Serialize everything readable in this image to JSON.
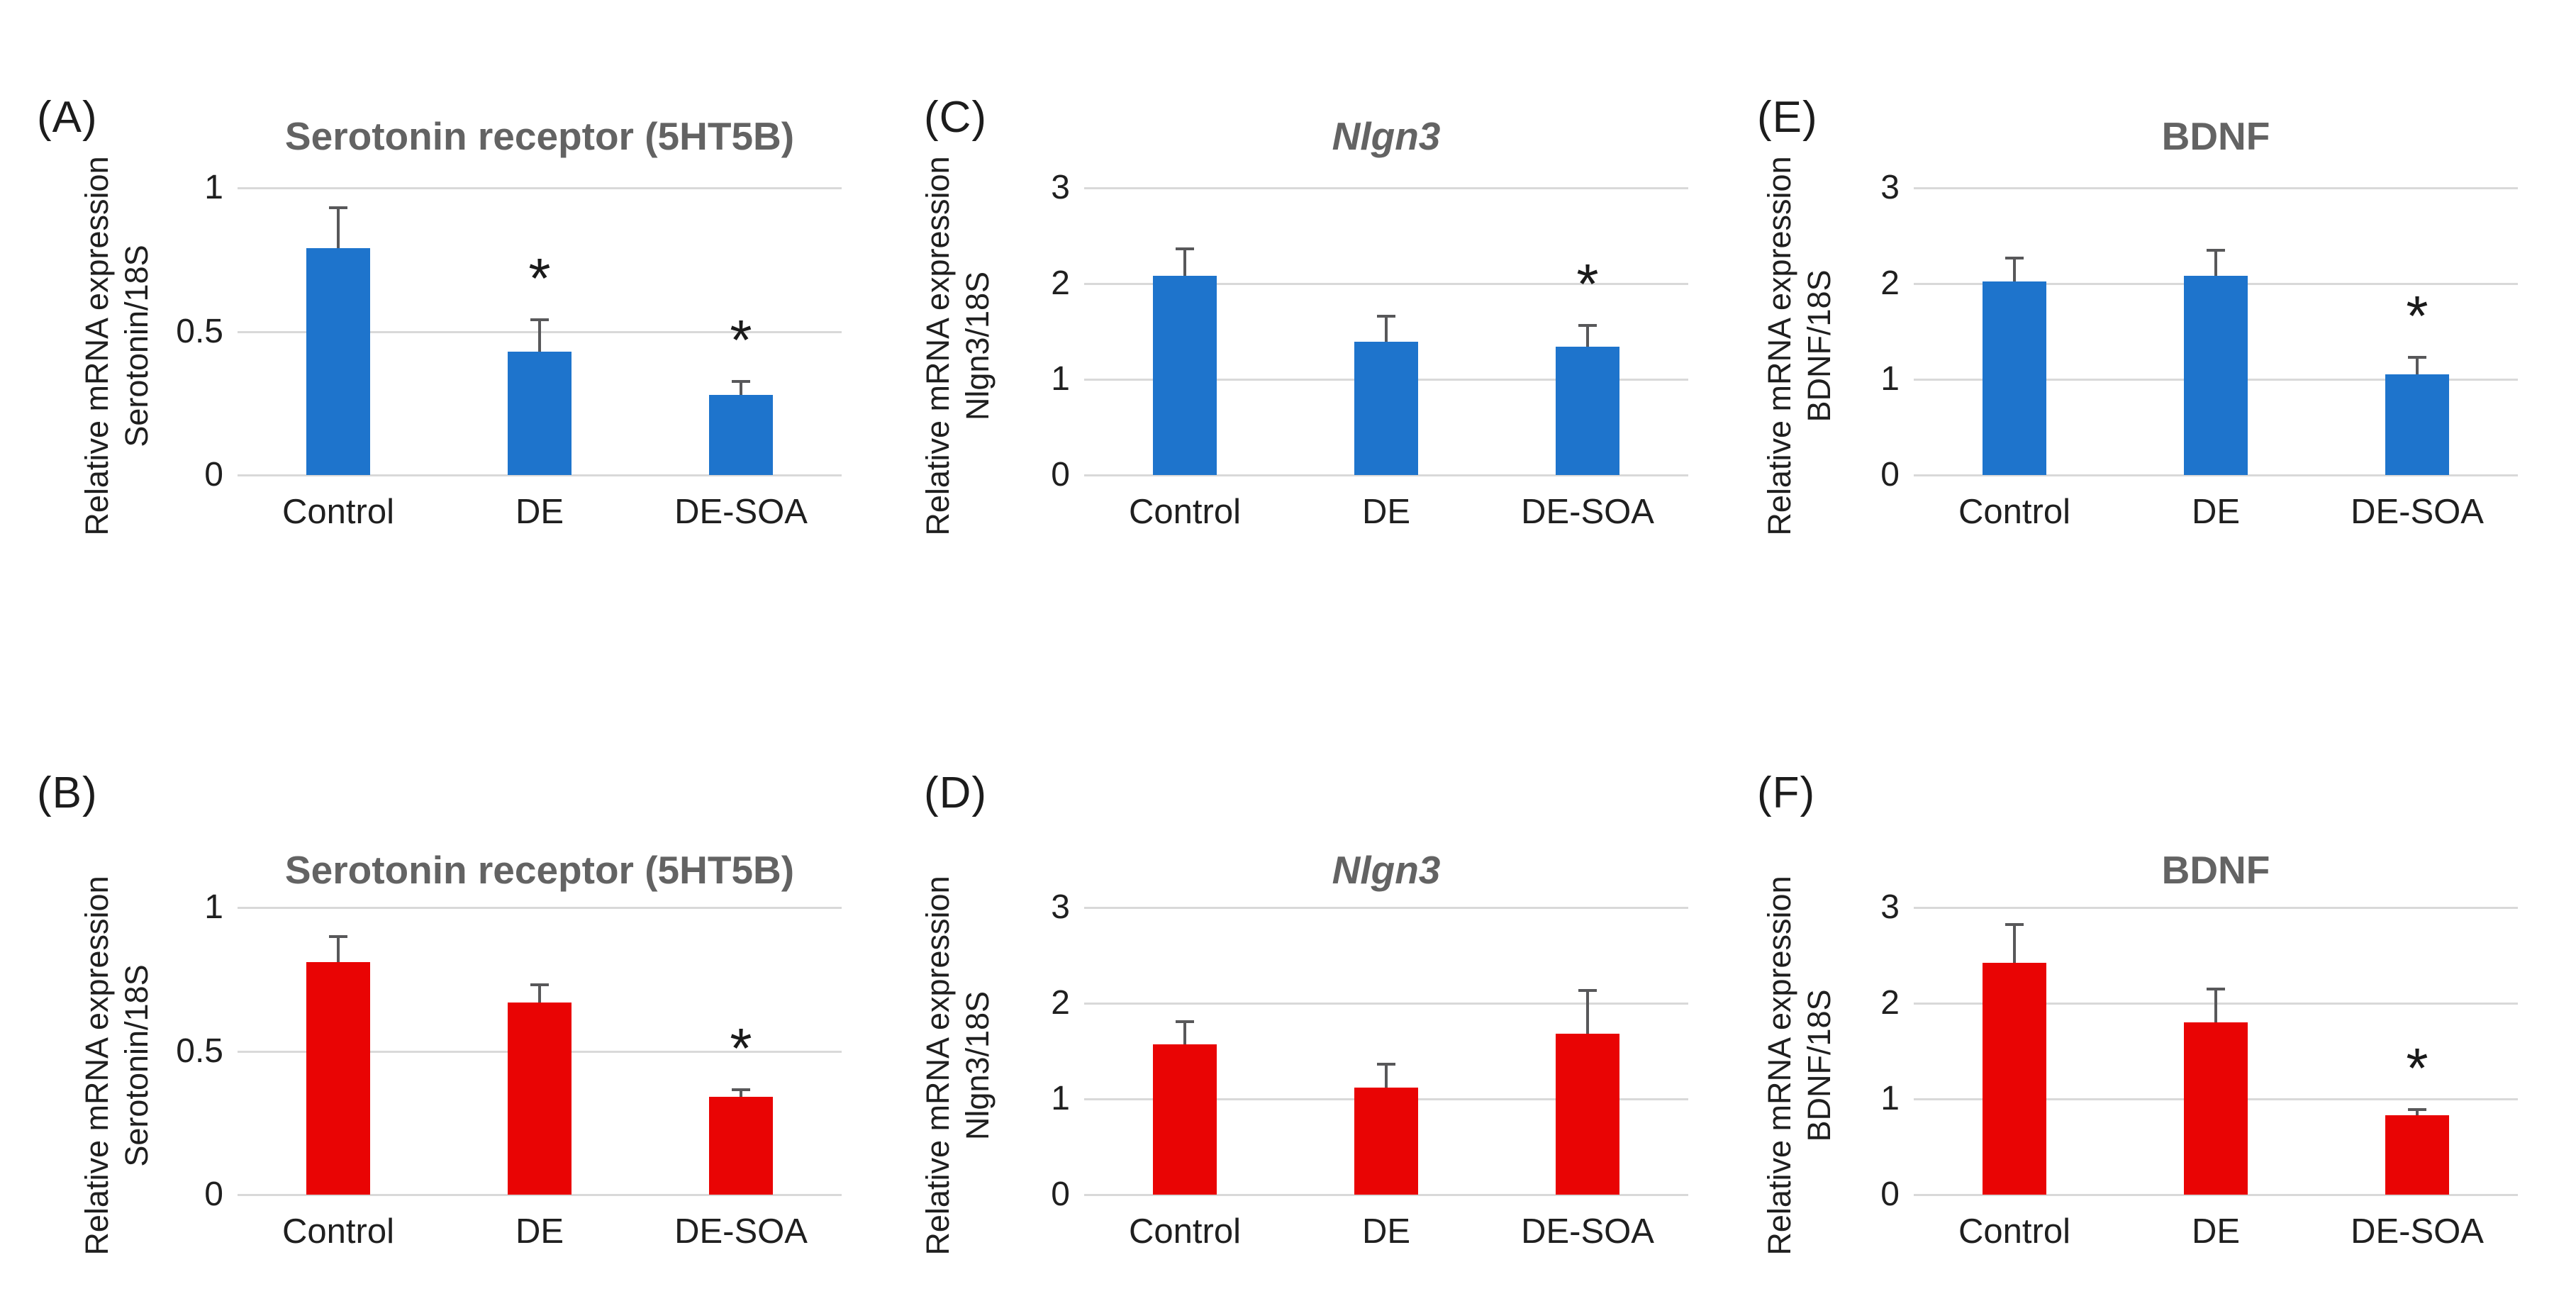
{
  "figure": {
    "background": "#ffffff",
    "grid_color": "#d9d9d9",
    "error_bar_color": "#58585a",
    "title_color": "#636363",
    "text_color": "#1f1f1f",
    "bar_blue": "#1e74cc",
    "bar_red": "#e90404"
  },
  "chart_data": [
    {
      "panel_label": "(A)",
      "type": "bar",
      "title": "Serotonin receptor (5HT5B)",
      "title_italic": false,
      "ylabel_line1": "Relative mRNA expression",
      "ylabel_line2": "Serotonin/18S",
      "categories": [
        "Control",
        "DE",
        "DE-SOA"
      ],
      "values": [
        0.79,
        0.43,
        0.28
      ],
      "errors_upper": [
        0.14,
        0.11,
        0.045
      ],
      "significance": [
        "",
        "*",
        "*"
      ],
      "bar_color": "#1e74cc",
      "ylim": [
        0,
        1
      ],
      "yticks": [
        0,
        0.5,
        1
      ],
      "grid": true,
      "legend": "none"
    },
    {
      "panel_label": "(C)",
      "type": "bar",
      "title": "Nlgn3",
      "title_italic": true,
      "ylabel_line1": "Relative mRNA expression",
      "ylabel_line2": "Nlgn3/18S",
      "categories": [
        "Control",
        "DE",
        "DE-SOA"
      ],
      "values": [
        2.08,
        1.39,
        1.34
      ],
      "errors_upper": [
        0.28,
        0.27,
        0.22
      ],
      "significance": [
        "",
        "",
        "*"
      ],
      "bar_color": "#1e74cc",
      "ylim": [
        0,
        3
      ],
      "yticks": [
        0,
        1,
        2,
        3
      ],
      "grid": true,
      "legend": "none"
    },
    {
      "panel_label": "(E)",
      "type": "bar",
      "title": "BDNF",
      "title_italic": false,
      "ylabel_line1": "Relative mRNA expression",
      "ylabel_line2": "BDNF/18S",
      "categories": [
        "Control",
        "DE",
        "DE-SOA"
      ],
      "values": [
        2.02,
        2.08,
        1.05
      ],
      "errors_upper": [
        0.25,
        0.27,
        0.18
      ],
      "significance": [
        "",
        "",
        "*"
      ],
      "bar_color": "#1e74cc",
      "ylim": [
        0,
        3
      ],
      "yticks": [
        0,
        1,
        2,
        3
      ],
      "grid": true,
      "legend": "none"
    },
    {
      "panel_label": "(B)",
      "type": "bar",
      "title": "Serotonin receptor (5HT5B)",
      "title_italic": false,
      "ylabel_line1": "Relative mRNA expression",
      "ylabel_line2": "Serotonin/18S",
      "categories": [
        "Control",
        "DE",
        "DE-SOA"
      ],
      "values": [
        0.81,
        0.67,
        0.34
      ],
      "errors_upper": [
        0.09,
        0.06,
        0.025
      ],
      "significance": [
        "",
        "",
        "*"
      ],
      "bar_color": "#e90404",
      "ylim": [
        0,
        1
      ],
      "yticks": [
        0,
        0.5,
        1
      ],
      "grid": true,
      "legend": "none"
    },
    {
      "panel_label": "(D)",
      "type": "bar",
      "title": "Nlgn3",
      "title_italic": true,
      "ylabel_line1": "Relative mRNA expression",
      "ylabel_line2": "Nlgn3/18S",
      "categories": [
        "Control",
        "DE",
        "DE-SOA"
      ],
      "values": [
        1.57,
        1.12,
        1.68
      ],
      "errors_upper": [
        0.24,
        0.24,
        0.45
      ],
      "significance": [
        "",
        "",
        ""
      ],
      "bar_color": "#e90404",
      "ylim": [
        0,
        3
      ],
      "yticks": [
        0,
        1,
        2,
        3
      ],
      "grid": true,
      "legend": "none"
    },
    {
      "panel_label": "(F)",
      "type": "bar",
      "title": "BDNF",
      "title_italic": false,
      "ylabel_line1": "Relative mRNA expression",
      "ylabel_line2": "BDNF/18S",
      "categories": [
        "Control",
        "DE",
        "DE-SOA"
      ],
      "values": [
        2.42,
        1.8,
        0.83
      ],
      "errors_upper": [
        0.4,
        0.35,
        0.06
      ],
      "significance": [
        "",
        "",
        "*"
      ],
      "bar_color": "#e90404",
      "ylim": [
        0,
        3
      ],
      "yticks": [
        0,
        1,
        2,
        3
      ],
      "grid": true,
      "legend": "none"
    }
  ]
}
